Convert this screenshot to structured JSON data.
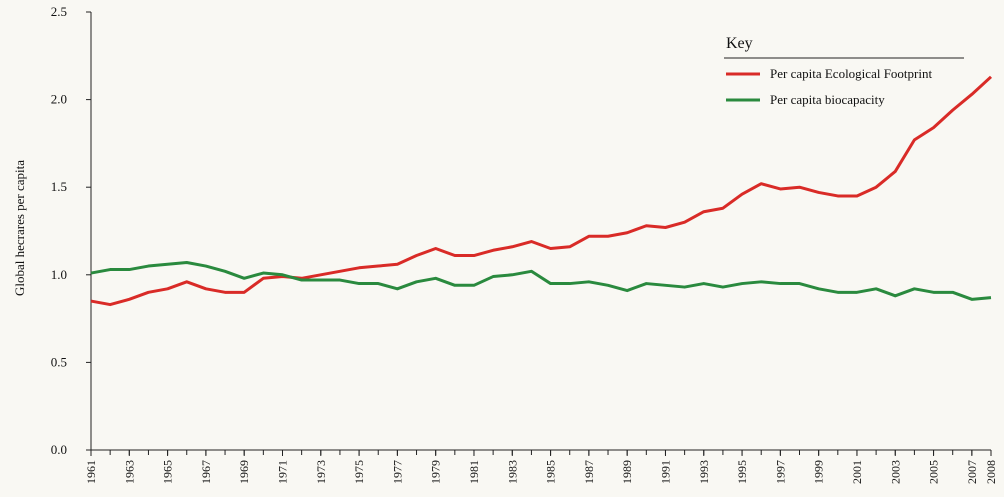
{
  "chart_data": {
    "type": "line",
    "y_label": "Global hecrares per capita",
    "legend_title": "Key",
    "legend": "upper right",
    "x": [
      1961,
      1962,
      1963,
      1964,
      1965,
      1966,
      1967,
      1968,
      1969,
      1970,
      1971,
      1972,
      1973,
      1974,
      1975,
      1976,
      1977,
      1978,
      1979,
      1980,
      1981,
      1982,
      1983,
      1984,
      1985,
      1986,
      1987,
      1988,
      1989,
      1990,
      1991,
      1992,
      1993,
      1994,
      1995,
      1996,
      1997,
      1998,
      1999,
      2000,
      2001,
      2002,
      2003,
      2004,
      2005,
      2006,
      2007,
      2008
    ],
    "series": [
      {
        "name": "Per capita Ecological Footprint",
        "color": "#d92b27",
        "values": [
          0.85,
          0.83,
          0.86,
          0.9,
          0.92,
          0.96,
          0.92,
          0.9,
          0.9,
          0.98,
          0.99,
          0.98,
          1.0,
          1.02,
          1.04,
          1.05,
          1.06,
          1.11,
          1.15,
          1.11,
          1.11,
          1.14,
          1.16,
          1.19,
          1.15,
          1.16,
          1.22,
          1.22,
          1.24,
          1.28,
          1.27,
          1.3,
          1.36,
          1.38,
          1.46,
          1.52,
          1.49,
          1.5,
          1.47,
          1.45,
          1.45,
          1.5,
          1.59,
          1.77,
          1.84,
          1.94,
          2.03,
          2.13
        ]
      },
      {
        "name": "Per capita biocapacity",
        "color": "#2a8a3e",
        "values": [
          1.01,
          1.03,
          1.03,
          1.05,
          1.06,
          1.07,
          1.05,
          1.02,
          0.98,
          1.01,
          1.0,
          0.97,
          0.97,
          0.97,
          0.95,
          0.95,
          0.92,
          0.96,
          0.98,
          0.94,
          0.94,
          0.99,
          1.0,
          1.02,
          0.95,
          0.95,
          0.96,
          0.94,
          0.91,
          0.95,
          0.94,
          0.93,
          0.95,
          0.93,
          0.95,
          0.96,
          0.95,
          0.95,
          0.92,
          0.9,
          0.9,
          0.92,
          0.88,
          0.92,
          0.9,
          0.9,
          0.86,
          0.87
        ]
      }
    ],
    "xlim": [
      1961,
      2008
    ],
    "xticks": [
      1961,
      1963,
      1965,
      1967,
      1969,
      1971,
      1973,
      1975,
      1977,
      1979,
      1981,
      1983,
      1985,
      1987,
      1989,
      1991,
      1993,
      1995,
      1997,
      1999,
      2001,
      2003,
      2005,
      2007,
      2008
    ],
    "ylim": [
      0,
      2.5
    ],
    "yticks": [
      {
        "value": 0,
        "label": "0.0"
      },
      0.5,
      {
        "value": 1,
        "label": "1.0"
      },
      1.5,
      {
        "value": 2,
        "label": "2.0"
      },
      2.5
    ]
  }
}
